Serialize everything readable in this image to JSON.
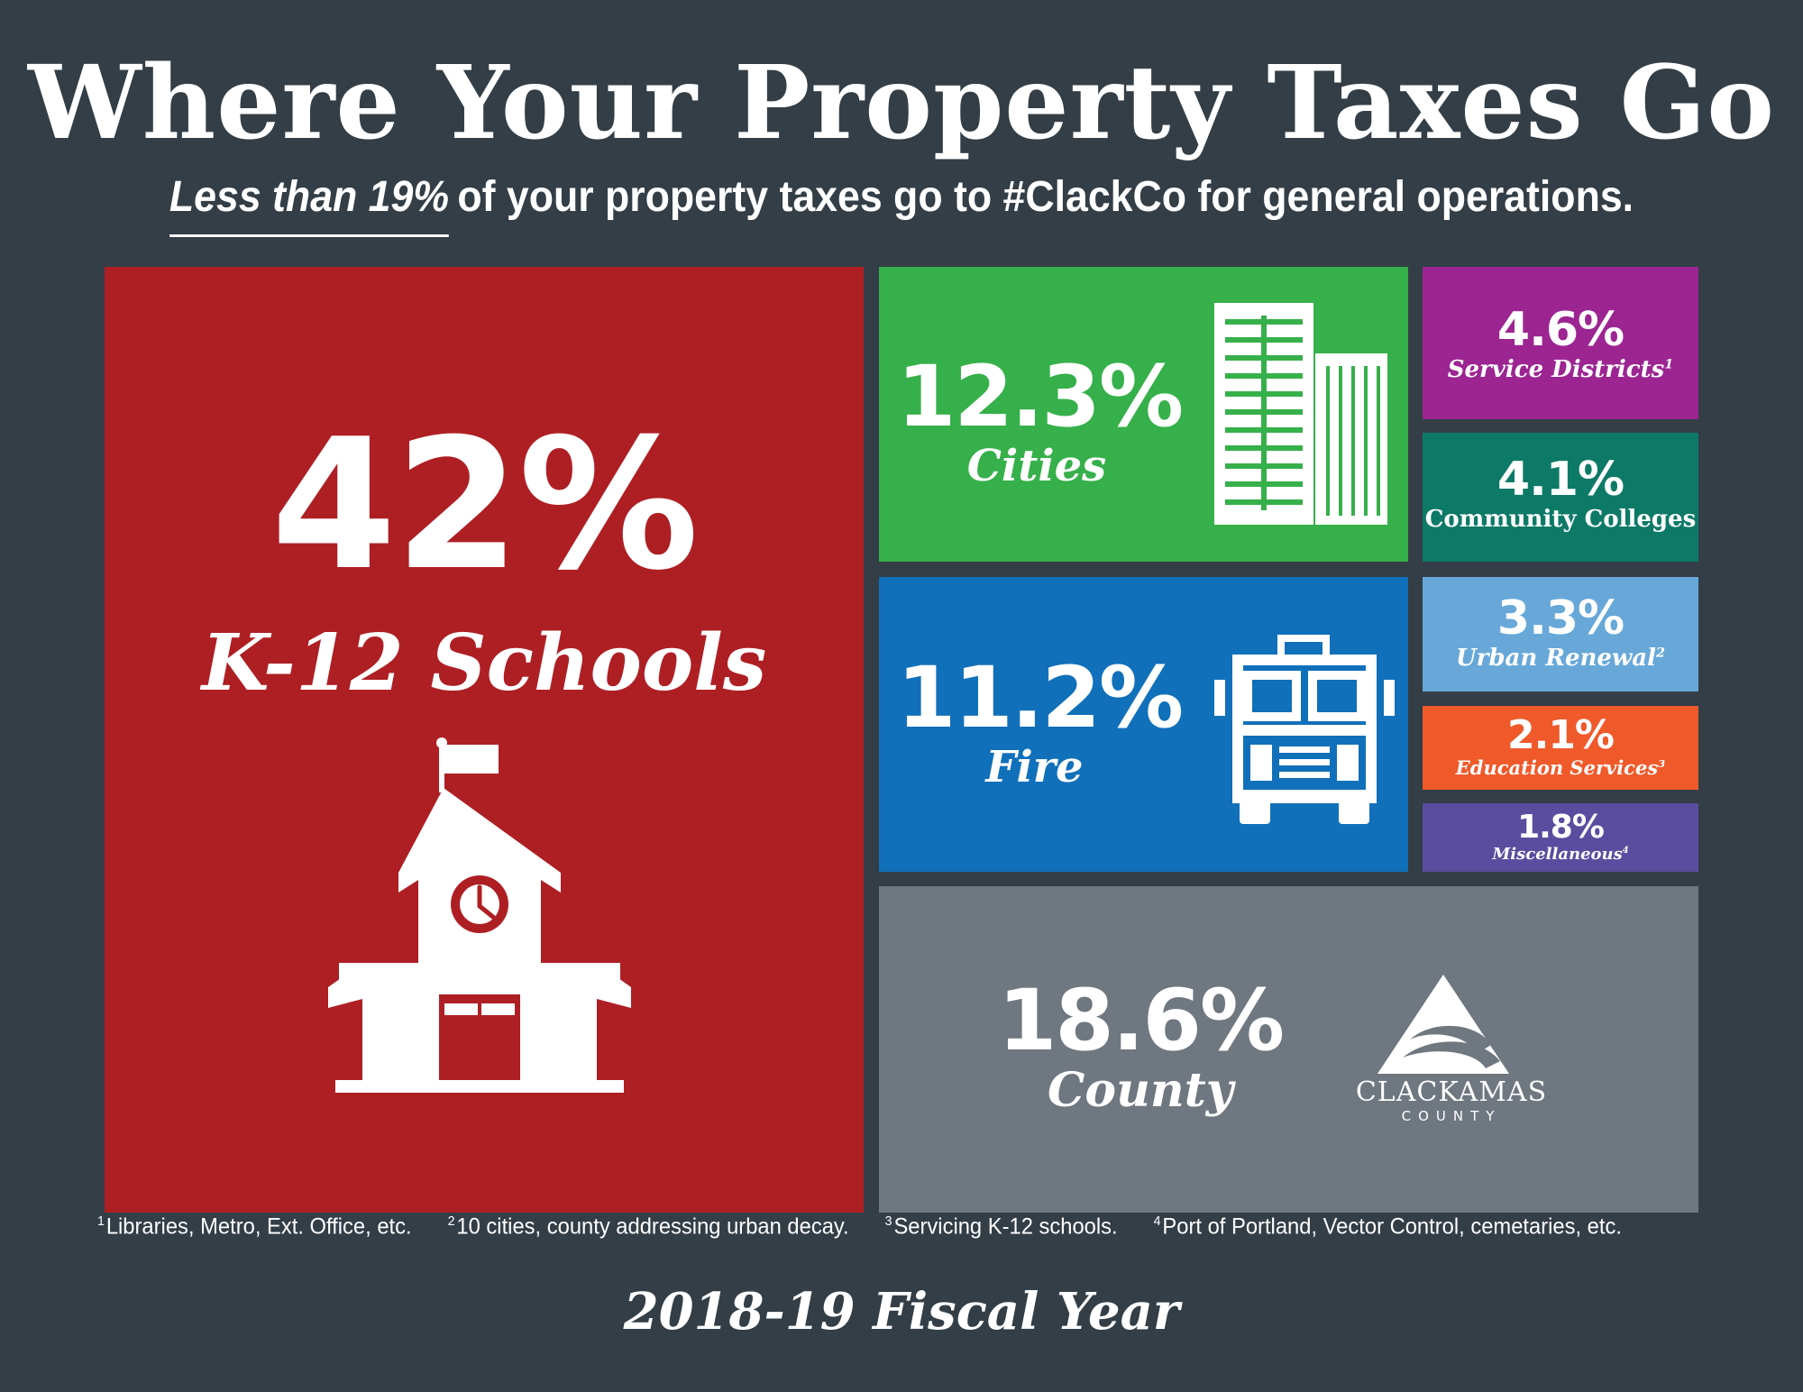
{
  "title": "Where Your Property Taxes Go",
  "subtitle": {
    "emphasis": "Less than 19%",
    "rest": "of your property taxes go to #ClackCo for general operations."
  },
  "chart_data": {
    "type": "treemap",
    "unit": "%",
    "items": [
      {
        "label": "K-12 Schools",
        "value": 42,
        "display": "42%",
        "color": "#ae1f24",
        "icon": "schoolhouse-icon"
      },
      {
        "label": "Cities",
        "value": 12.3,
        "display": "12.3%",
        "color": "#36b04a",
        "icon": "buildings-icon"
      },
      {
        "label": "Fire",
        "value": 11.2,
        "display": "11.2%",
        "color": "#1170ba",
        "icon": "fire-truck-icon"
      },
      {
        "label": "County",
        "value": 18.6,
        "display": "18.6%",
        "color": "#6f7780",
        "icon": "clackamas-county-logo"
      },
      {
        "label": "Service Districts",
        "footnote": "1",
        "value": 4.6,
        "display": "4.6%",
        "color": "#9c2592"
      },
      {
        "label": "Community Colleges",
        "value": 4.1,
        "display": "4.1%",
        "color": "#0d7a67"
      },
      {
        "label": "Urban Renewal",
        "footnote": "2",
        "value": 3.3,
        "display": "3.3%",
        "color": "#67a8d8"
      },
      {
        "label": "Education Services",
        "footnote": "3",
        "value": 2.1,
        "display": "2.1%",
        "color": "#f0592a"
      },
      {
        "label": "Miscellaneous",
        "footnote": "4",
        "value": 1.8,
        "display": "1.8%",
        "color": "#5a4c9e"
      }
    ]
  },
  "logo": {
    "line1": "CLACKAMAS",
    "line2": "COUNTY"
  },
  "footnotes": [
    {
      "num": "1",
      "text": "Libraries, Metro, Ext. Office, etc."
    },
    {
      "num": "2",
      "text": "10 cities, county addressing urban decay."
    },
    {
      "num": "3",
      "text": "Servicing K-12 schools."
    },
    {
      "num": "4",
      "text": "Port of Portland, Vector Control, cemetaries, etc."
    }
  ],
  "fiscal_year": "2018-19 Fiscal Year"
}
